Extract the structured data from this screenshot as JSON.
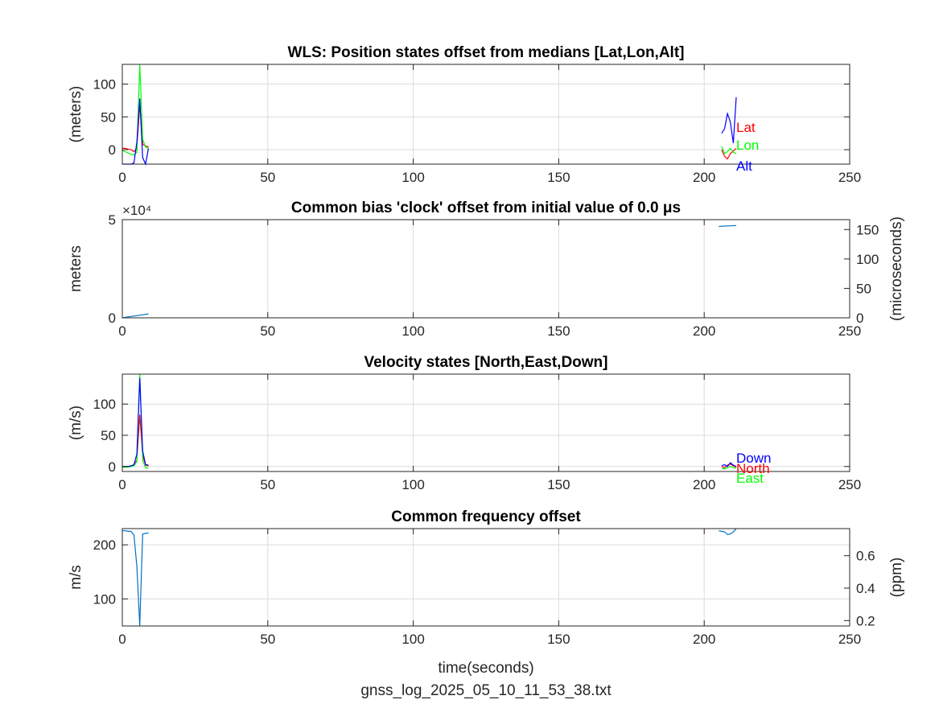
{
  "figure": {
    "xlabel": "time(seconds)",
    "filename": "gnss_log_2025_05_10_11_53_38.txt"
  },
  "chart_data": [
    {
      "type": "line",
      "title": "WLS: Position states offset from medians [Lat,Lon,Alt]",
      "ylabel": "(meters)",
      "xlim": [
        0,
        250
      ],
      "ylim": [
        -22,
        130
      ],
      "xticks": [
        0,
        50,
        100,
        150,
        200,
        250
      ],
      "yticks": [
        0,
        50,
        100
      ],
      "grid": true,
      "series": [
        {
          "name": "Lat",
          "color": "#ff0000",
          "segments": [
            [
              [
                0,
                2
              ],
              [
                1,
                2
              ],
              [
                2,
                1
              ],
              [
                3,
                0
              ],
              [
                4,
                -3
              ],
              [
                5,
                2
              ],
              [
                6,
                70
              ],
              [
                7,
                8
              ],
              [
                8,
                6
              ],
              [
                9,
                4
              ]
            ],
            [
              [
                206,
                0
              ],
              [
                207,
                -10
              ],
              [
                208,
                -14
              ],
              [
                209,
                -6
              ],
              [
                210,
                -2
              ],
              [
                211,
                2
              ]
            ]
          ]
        },
        {
          "name": "Lon",
          "color": "#00ff00",
          "segments": [
            [
              [
                0,
                -1
              ],
              [
                1,
                -3
              ],
              [
                2,
                -5
              ],
              [
                3,
                -7
              ],
              [
                4,
                -8
              ],
              [
                5,
                -4
              ],
              [
                6,
                130
              ],
              [
                7,
                16
              ],
              [
                8,
                4
              ],
              [
                9,
                2
              ]
            ],
            [
              [
                206,
                5
              ],
              [
                207,
                -6
              ],
              [
                208,
                -3
              ],
              [
                209,
                2
              ],
              [
                210,
                -4
              ],
              [
                211,
                -6
              ]
            ]
          ]
        },
        {
          "name": "Alt",
          "color": "#0000ff",
          "segments": [
            [
              [
                0,
                -22
              ],
              [
                1,
                -24
              ],
              [
                2,
                -27
              ],
              [
                3,
                -30
              ],
              [
                4,
                -20
              ],
              [
                5,
                12
              ],
              [
                6,
                78
              ],
              [
                7,
                -12
              ],
              [
                8,
                -24
              ],
              [
                9,
                2
              ]
            ],
            [
              [
                206,
                25
              ],
              [
                207,
                32
              ],
              [
                208,
                55
              ],
              [
                209,
                42
              ],
              [
                210,
                10
              ],
              [
                211,
                80
              ]
            ]
          ]
        }
      ],
      "labels": [
        "Lat",
        "Lon",
        "Alt"
      ]
    },
    {
      "type": "line",
      "title": "Common bias 'clock' offset from initial value of 0.0 μs",
      "ylabel": "meters",
      "y2label": "(microseconds)",
      "exponent_label": "×10⁴",
      "xlim": [
        0,
        250
      ],
      "ylim": [
        0,
        50000
      ],
      "y2lim": [
        0,
        166.8
      ],
      "xticks": [
        0,
        50,
        100,
        150,
        200,
        250
      ],
      "yticks": [
        0,
        5
      ],
      "y2ticks": [
        0,
        50,
        100,
        150
      ],
      "grid": true,
      "series": [
        {
          "name": "",
          "color": "#0072bd",
          "segments": [
            [
              [
                0,
                0
              ],
              [
                3,
                700
              ],
              [
                6,
                1300
              ],
              [
                9,
                2000
              ]
            ],
            [
              [
                205,
                46500
              ],
              [
                208,
                46800
              ],
              [
                211,
                47000
              ]
            ]
          ]
        }
      ]
    },
    {
      "type": "line",
      "title": "Velocity states [North,East,Down]",
      "ylabel": "(m/s)",
      "xlim": [
        0,
        250
      ],
      "ylim": [
        -8,
        148
      ],
      "xticks": [
        0,
        50,
        100,
        150,
        200,
        250
      ],
      "yticks": [
        0,
        50,
        100
      ],
      "grid": true,
      "series": [
        {
          "name": "North",
          "color": "#ff0000",
          "segments": [
            [
              [
                0,
                0
              ],
              [
                2,
                0
              ],
              [
                3,
                1
              ],
              [
                4,
                2
              ],
              [
                5,
                10
              ],
              [
                6,
                83
              ],
              [
                7,
                18
              ],
              [
                8,
                2
              ],
              [
                9,
                1
              ]
            ],
            [
              [
                206,
                0
              ],
              [
                207,
                -2
              ],
              [
                208,
                2
              ],
              [
                209,
                4
              ],
              [
                210,
                1
              ],
              [
                211,
                -1
              ]
            ]
          ]
        },
        {
          "name": "East",
          "color": "#00ff00",
          "segments": [
            [
              [
                0,
                -1
              ],
              [
                2,
                -1
              ],
              [
                3,
                0
              ],
              [
                4,
                1
              ],
              [
                5,
                8
              ],
              [
                6,
                148
              ],
              [
                7,
                10
              ],
              [
                8,
                -2
              ],
              [
                9,
                -3
              ]
            ],
            [
              [
                206,
                -3
              ],
              [
                207,
                -4
              ],
              [
                208,
                -2
              ],
              [
                209,
                0
              ],
              [
                210,
                -2
              ],
              [
                211,
                -3
              ]
            ]
          ]
        },
        {
          "name": "Down",
          "color": "#0000ff",
          "segments": [
            [
              [
                0,
                0
              ],
              [
                2,
                0
              ],
              [
                3,
                1
              ],
              [
                4,
                3
              ],
              [
                5,
                20
              ],
              [
                6,
                142
              ],
              [
                7,
                25
              ],
              [
                8,
                3
              ],
              [
                9,
                2
              ]
            ],
            [
              [
                206,
                1
              ],
              [
                207,
                3
              ],
              [
                208,
                0
              ],
              [
                209,
                6
              ],
              [
                210,
                2
              ],
              [
                211,
                0
              ]
            ]
          ]
        }
      ],
      "labels": [
        "Down",
        "North",
        "East"
      ]
    },
    {
      "type": "line",
      "title": "Common frequency offset",
      "ylabel": "m/s",
      "y2label": "(ppm)",
      "xlim": [
        0,
        250
      ],
      "ylim": [
        50,
        230
      ],
      "y2lim": [
        0.167,
        0.767
      ],
      "xticks": [
        0,
        50,
        100,
        150,
        200,
        250
      ],
      "yticks": [
        100,
        200
      ],
      "y2ticks": [
        0.2,
        0.4,
        0.6
      ],
      "grid": true,
      "series": [
        {
          "name": "",
          "color": "#0072bd",
          "segments": [
            [
              [
                0,
                226
              ],
              [
                1,
                226
              ],
              [
                2,
                225
              ],
              [
                3,
                225
              ],
              [
                4,
                218
              ],
              [
                5,
                160
              ],
              [
                6,
                50
              ],
              [
                7,
                220
              ],
              [
                8,
                221
              ],
              [
                9,
                222
              ]
            ],
            [
              [
                205,
                226
              ],
              [
                206,
                225
              ],
              [
                207,
                224
              ],
              [
                208,
                219
              ],
              [
                209,
                220
              ],
              [
                210,
                224
              ],
              [
                211,
                230
              ]
            ]
          ]
        }
      ]
    }
  ]
}
